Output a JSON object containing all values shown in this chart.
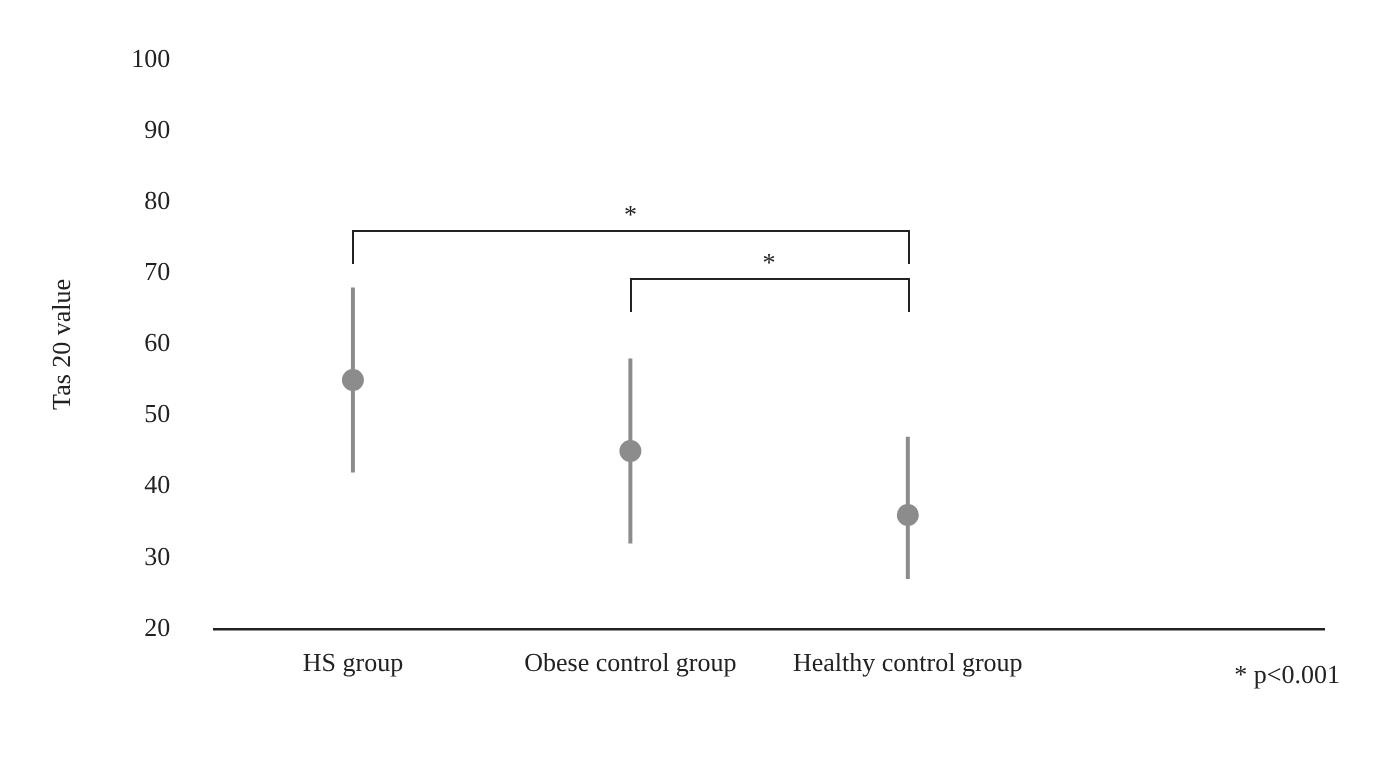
{
  "chart_data": {
    "type": "scatter",
    "ylabel": "Tas 20 value",
    "categories": [
      "HS group",
      "Obese control group",
      "Healthy control group",
      null
    ],
    "series": [
      {
        "color": "#8c8c8c",
        "values": [
          55,
          45,
          36,
          null
        ],
        "errors": [
          [
            42,
            68
          ],
          [
            32,
            58
          ],
          [
            27,
            47
          ],
          null
        ]
      }
    ],
    "ylim": [
      20,
      100
    ],
    "yticks": [
      20,
      30,
      40,
      50,
      60,
      70,
      80,
      90,
      100
    ],
    "grid": false,
    "legend": false,
    "marker": "circle",
    "annotations": [
      "*",
      "*",
      "* p<0.001"
    ]
  }
}
